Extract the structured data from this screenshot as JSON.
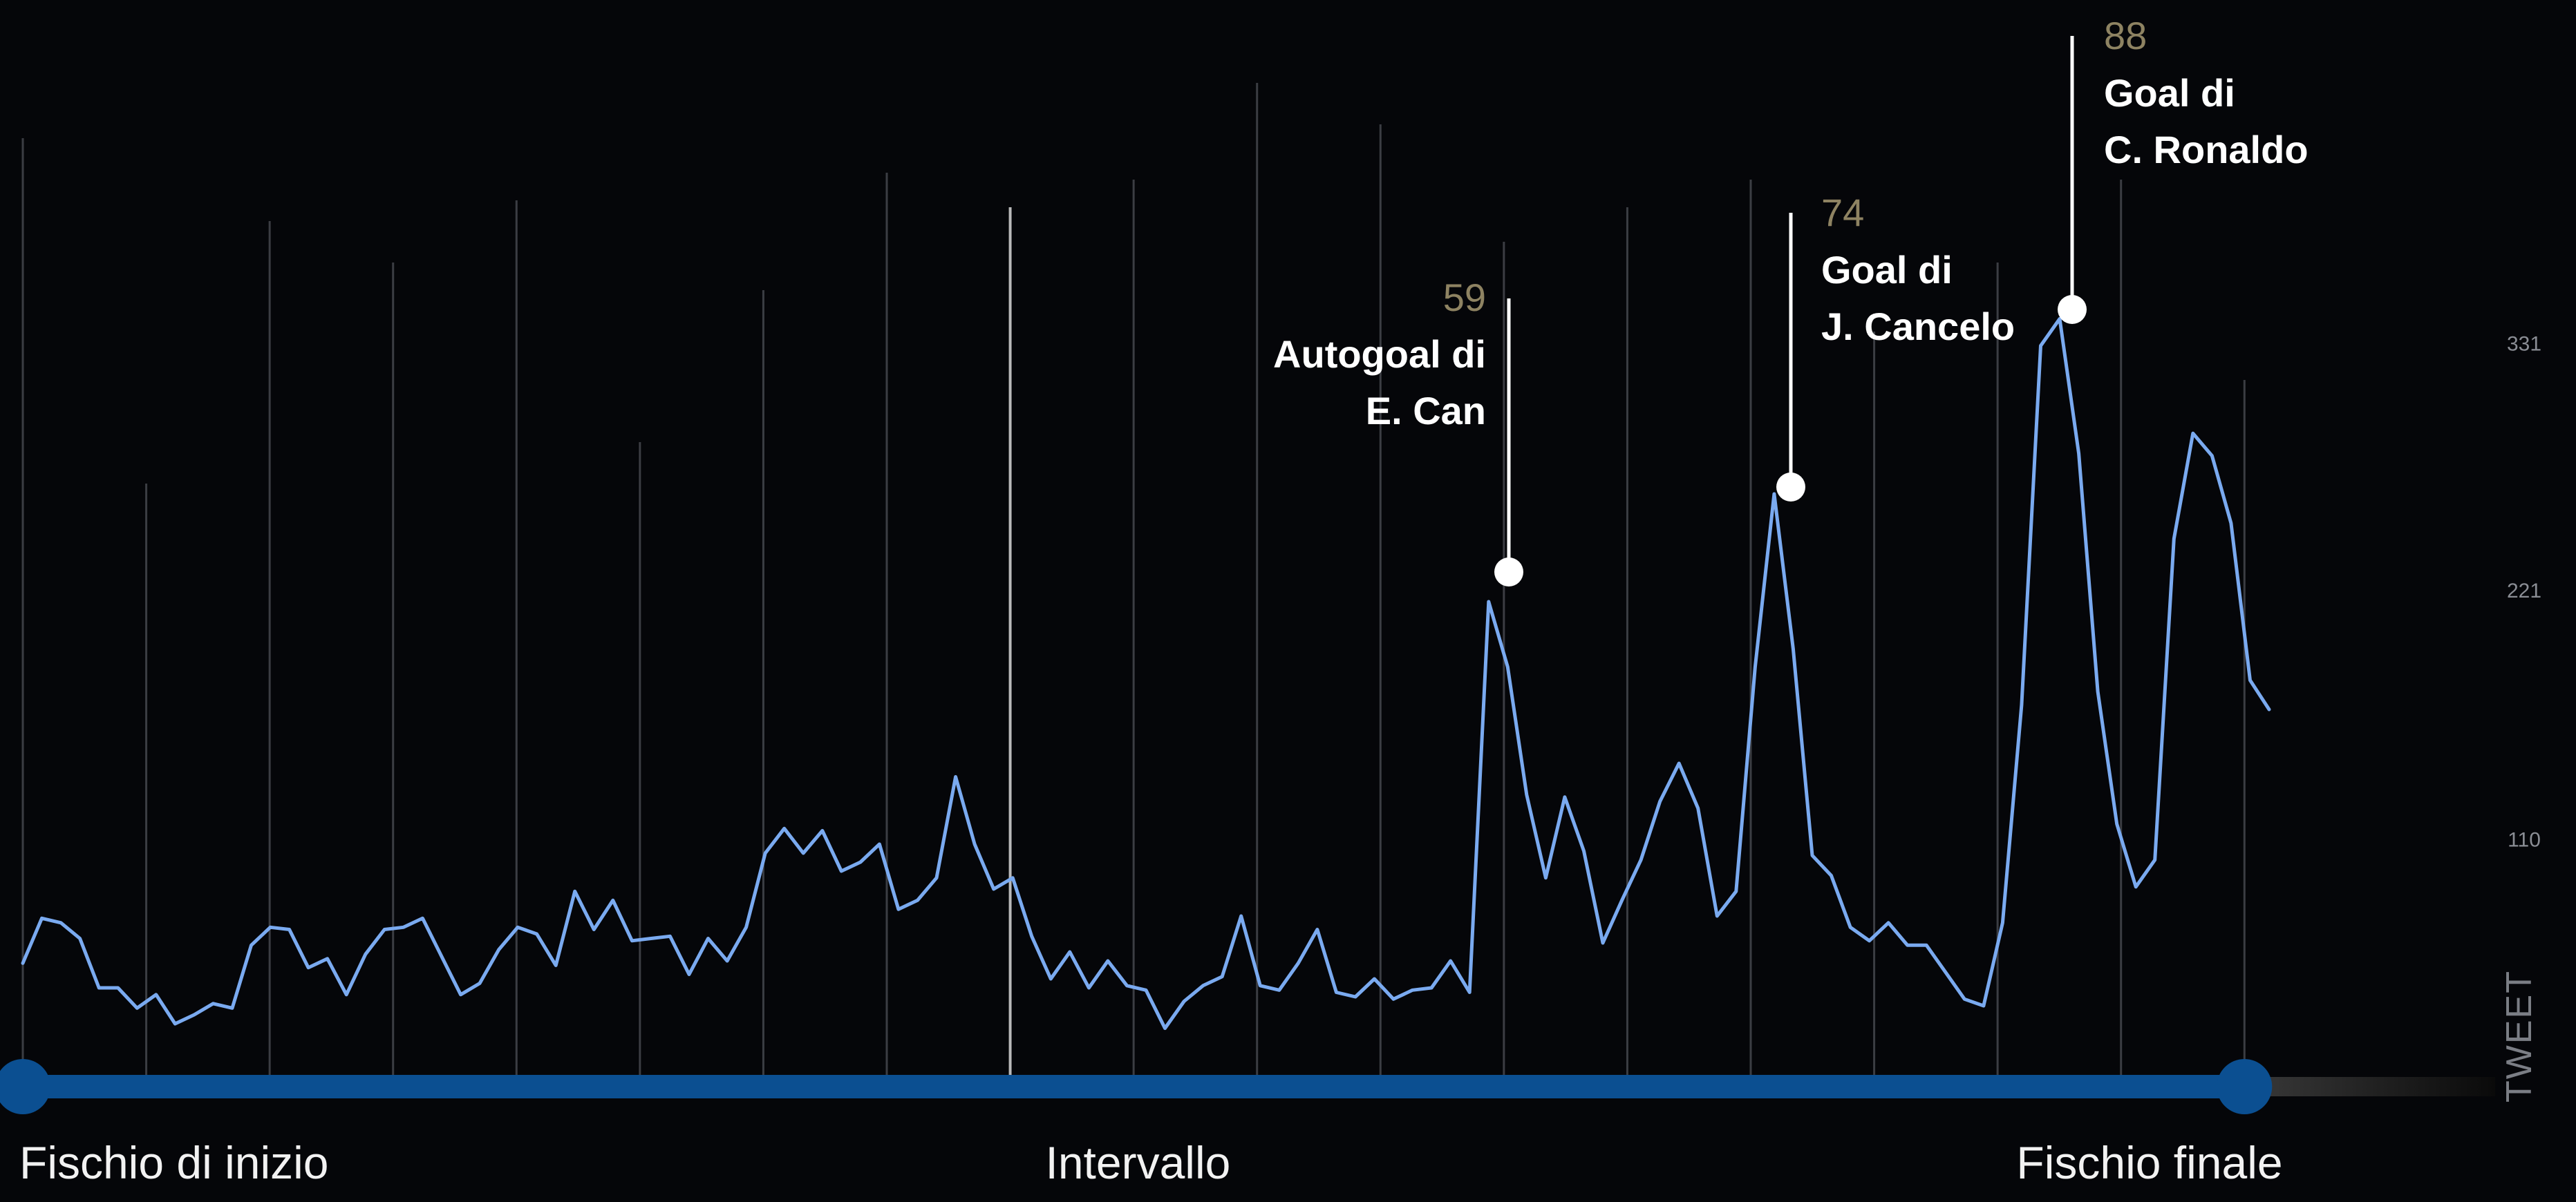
{
  "chart_data": {
    "type": "line",
    "x_range": [
      0,
      91
    ],
    "ylim": [
      0,
      331
    ],
    "y_ticks": [
      110,
      221,
      331
    ],
    "y_axis_label": "TWEET",
    "timeline": {
      "start_label": "Fischio di inizio",
      "half_label": "Intervallo",
      "end_label": "Fischio finale",
      "half_minute": 40.5
    },
    "colors": {
      "line": "#7aaaf0",
      "timeline": "#0b4f91",
      "annotation": "#ffffff",
      "minute": "#8e8362",
      "gridline": "#4d5057"
    },
    "series": [
      {
        "values": [
          55,
          75,
          73,
          66,
          44,
          44,
          35,
          41,
          28,
          32,
          37,
          35,
          63,
          71,
          70,
          53,
          57,
          41,
          59,
          70,
          71,
          75,
          58,
          41,
          46,
          61,
          71,
          68,
          54,
          87,
          70,
          83,
          65,
          66,
          67,
          50,
          66,
          56,
          71,
          104,
          115,
          104,
          114,
          96,
          100,
          108,
          79,
          83,
          93,
          138,
          108,
          88,
          93,
          67,
          48,
          60,
          44,
          56,
          45,
          43,
          26,
          38,
          45,
          49,
          76,
          45,
          43,
          55,
          70,
          42,
          40,
          48,
          39,
          43,
          44,
          56,
          42,
          216,
          187,
          130,
          93,
          129,
          105,
          64,
          83,
          101,
          127,
          144,
          124,
          76,
          87,
          187,
          264,
          195,
          103,
          94,
          71,
          65,
          73,
          63,
          63,
          51,
          39,
          36,
          73,
          170,
          330,
          342,
          282,
          176,
          117,
          89,
          101,
          244,
          291,
          281,
          251,
          181,
          168
        ]
      }
    ],
    "annotations": [
      {
        "minute": "59",
        "line1": "Autogoal di",
        "line2": "E. Can",
        "align": "right"
      },
      {
        "minute": "74",
        "line1": "Goal di",
        "line2": "J. Cancelo",
        "align": "left"
      },
      {
        "minute": "88",
        "line1": "Goal di",
        "line2": "C. Ronaldo",
        "align": "left"
      }
    ]
  }
}
